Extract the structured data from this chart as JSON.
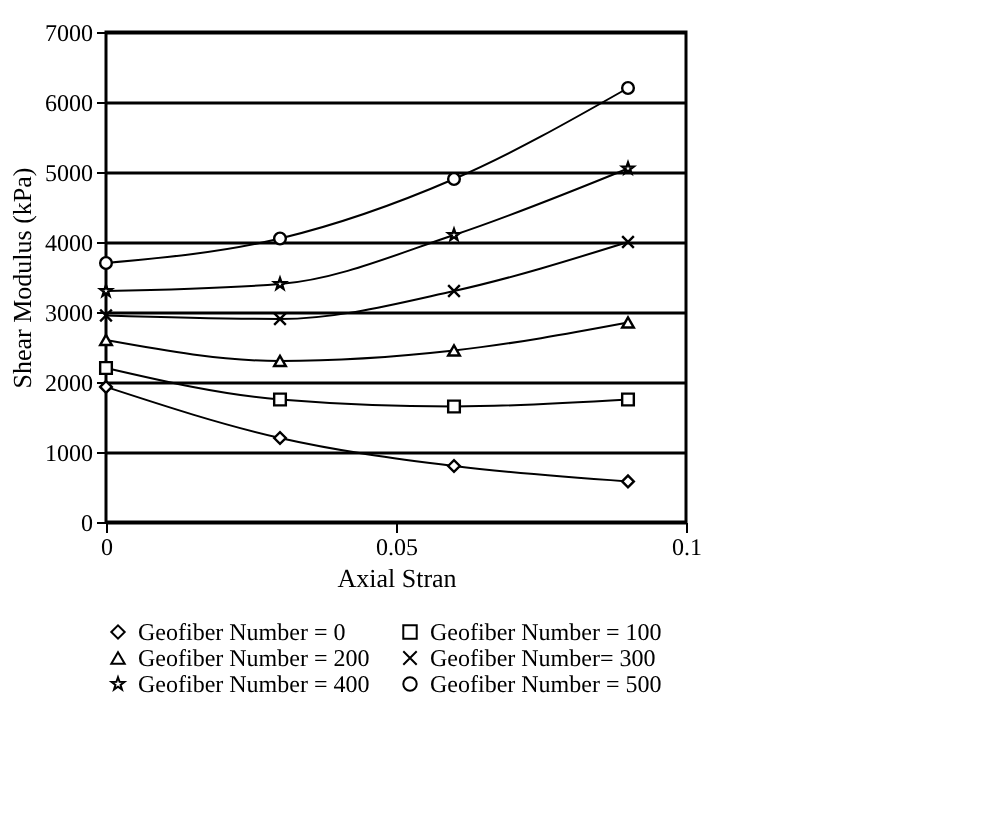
{
  "chart_data": {
    "type": "line",
    "xlabel": "Axial Stran",
    "ylabel": "Shear Modulus (kPa)",
    "x": [
      0,
      0.03,
      0.06,
      0.09
    ],
    "xlim": [
      0,
      0.1
    ],
    "xticks": [
      0,
      0.05,
      0.1
    ],
    "ylim": [
      0,
      7000
    ],
    "yticks": [
      0,
      1000,
      2000,
      3000,
      4000,
      5000,
      6000,
      7000
    ],
    "grid": "y",
    "legend": "bottom",
    "series": [
      {
        "name": "Geofiber Number = 0",
        "color": "#000000",
        "marker": "diamond",
        "values": [
          1930,
          1200,
          800,
          580
        ]
      },
      {
        "name": "Geofiber Number = 100",
        "color": "#000000",
        "marker": "square",
        "values": [
          2200,
          1750,
          1650,
          1750
        ]
      },
      {
        "name": "Geofiber Number = 200",
        "color": "#000000",
        "marker": "triangle",
        "values": [
          2600,
          2300,
          2450,
          2850
        ]
      },
      {
        "name": "Geofiber Number= 300",
        "color": "#000000",
        "marker": "cross",
        "values": [
          2950,
          2900,
          3300,
          4000
        ]
      },
      {
        "name": "Geofiber Number = 400",
        "color": "#000000",
        "marker": "star",
        "values": [
          3300,
          3400,
          4100,
          5050
        ]
      },
      {
        "name": "Geofiber Number = 500",
        "color": "#000000",
        "marker": "circle",
        "values": [
          3700,
          4050,
          4900,
          6200
        ]
      }
    ]
  }
}
